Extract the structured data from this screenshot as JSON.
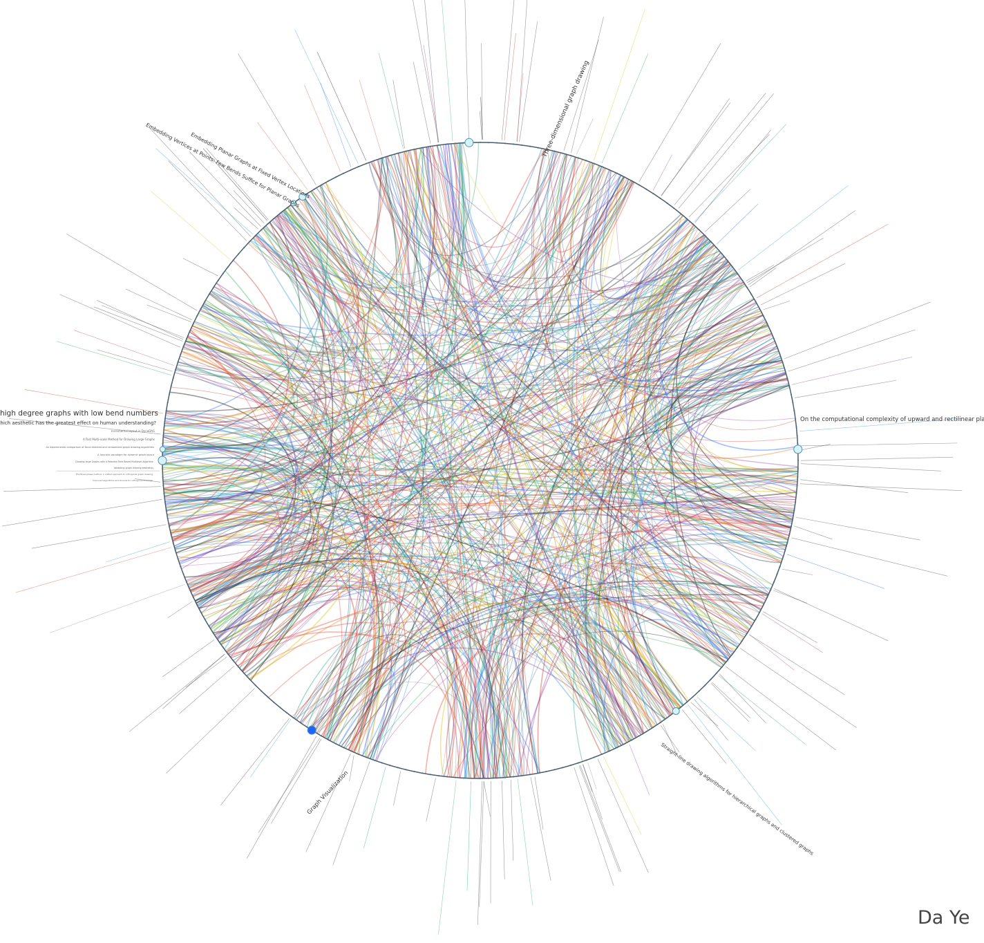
{
  "diagram": {
    "type": "radial citation graph with hierarchical edge bundling",
    "colors": {
      "background": "#ffffff",
      "circle": "#4a5a66",
      "node_fill": "#d8f3f6",
      "node_stroke": "#4a90b8",
      "highlight_node": "#1f63ff",
      "edge_palette": [
        "#c0392b",
        "#1f63ff",
        "#8e44ad",
        "#27ae60",
        "#e67e22",
        "#2c3e50",
        "#d4c400",
        "#16a085",
        "#7f8c8d",
        "#b03a80",
        "#e74c3c",
        "#3498db",
        "#000000"
      ]
    },
    "labeled_nodes": [
      {
        "id": "n1",
        "title": "Drawing high degree graphs with low bend numbers"
      },
      {
        "id": "n2",
        "title": "Which aesthetic has the greatest effect on human understanding?"
      },
      {
        "id": "n3",
        "title": "Three-dimensional graph drawing"
      },
      {
        "id": "n4",
        "title": "On the computational complexity of upward and rectilinear planarity testing"
      },
      {
        "id": "n5",
        "title": "Embedding Planar Graphs at Fixed Vertex Locations"
      },
      {
        "id": "n6",
        "title": "Embedding Vertices at Points: Few Bends Suffice for Planar Graphs"
      },
      {
        "id": "n7",
        "title": "Graph Visualization"
      },
      {
        "id": "n8",
        "title": "Straight-line drawing algorithms for hierarchical graphs and clustered graphs"
      }
    ],
    "minor_labels": [
      "Incremental layout in DynaDAG",
      "A Fast Multi-scale Method for Drawing Large Graphs",
      "An experimental comparison of force-directed and randomized graph drawing algorithms",
      "A heuristic paradigm for dynamic graph layout",
      "Drawing large Graphs with a Potential Field Based Multilevel Algorithm",
      "Validating graph drawing aesthetics",
      "The three-phase method: A unified approach to orthogonal graph drawing",
      "Improved algorithms and bounds for orthogonal drawings"
    ]
  },
  "credit": {
    "text": "Da Ye"
  }
}
